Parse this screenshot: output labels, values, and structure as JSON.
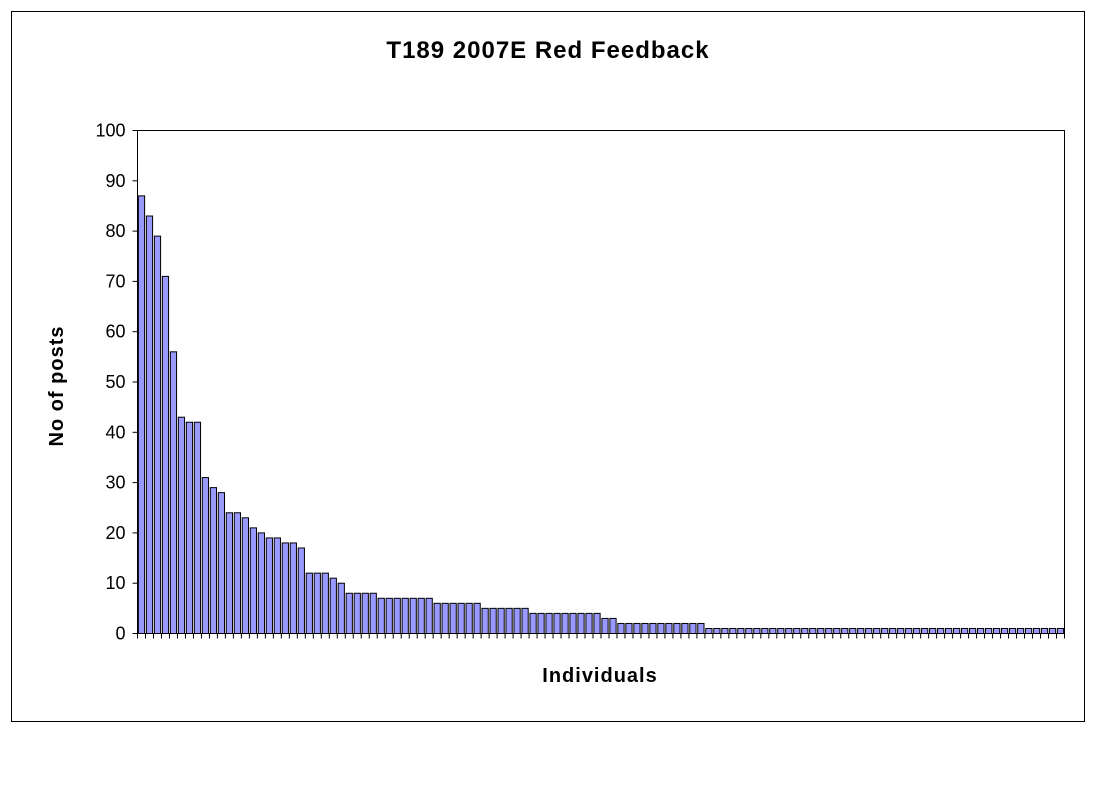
{
  "chart_data": {
    "type": "bar",
    "title": "T189 2007E Red Feedback",
    "xlabel": "Individuals",
    "ylabel": "No of posts",
    "ylim": [
      0,
      100
    ],
    "yticks": [
      0,
      10,
      20,
      30,
      40,
      50,
      60,
      70,
      80,
      90,
      100
    ],
    "grid": false,
    "legend": "none",
    "bar_color": "#9999ff",
    "bar_stroke": "#000000",
    "values": [
      87,
      83,
      79,
      71,
      56,
      43,
      42,
      42,
      31,
      29,
      28,
      24,
      24,
      23,
      21,
      20,
      19,
      19,
      18,
      18,
      17,
      12,
      12,
      12,
      11,
      10,
      8,
      8,
      8,
      8,
      7,
      7,
      7,
      7,
      7,
      7,
      7,
      6,
      6,
      6,
      6,
      6,
      6,
      5,
      5,
      5,
      5,
      5,
      5,
      4,
      4,
      4,
      4,
      4,
      4,
      4,
      4,
      4,
      3,
      3,
      2,
      2,
      2,
      2,
      2,
      2,
      2,
      2,
      2,
      2,
      2,
      1,
      1,
      1,
      1,
      1,
      1,
      1,
      1,
      1,
      1,
      1,
      1,
      1,
      1,
      1,
      1,
      1,
      1,
      1,
      1,
      1,
      1,
      1,
      1,
      1,
      1,
      1,
      1,
      1,
      1,
      1,
      1,
      1,
      1,
      1,
      1,
      1,
      1,
      1,
      1,
      1,
      1,
      1,
      1,
      1
    ]
  }
}
